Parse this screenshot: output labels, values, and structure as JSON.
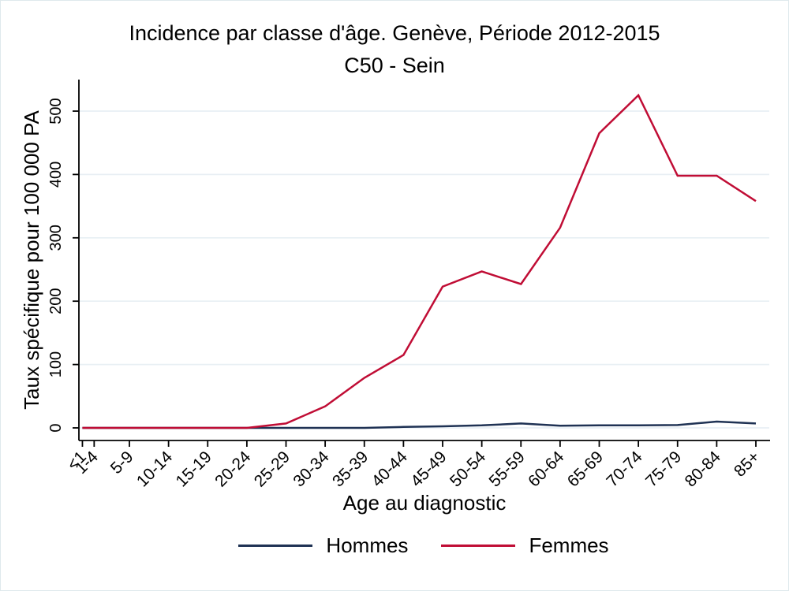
{
  "chart_data": {
    "type": "line",
    "title": "Incidence par classe d'âge. Genève, Période 2012-2015",
    "subtitle": "C50 - Sein",
    "xlabel": "Age au diagnostic",
    "ylabel": "Taux spécifique pour 100 000 PA",
    "categories": [
      "<1",
      "1-4",
      "5-9",
      "10-14",
      "15-19",
      "20-24",
      "25-29",
      "30-34",
      "35-39",
      "40-44",
      "45-49",
      "50-54",
      "55-59",
      "60-64",
      "65-69",
      "70-74",
      "75-79",
      "80-84",
      "85+"
    ],
    "x_age_positions": [
      1,
      2.5,
      7,
      12,
      17,
      22,
      27,
      32,
      37,
      42,
      47,
      52,
      57,
      62,
      67,
      72,
      77,
      82,
      87
    ],
    "yticks": [
      0,
      100,
      200,
      300,
      400,
      500
    ],
    "ylim": [
      0,
      550
    ],
    "grid": "horizontal",
    "grid_color": "#e8eff4",
    "axis_color": "#000000",
    "legend_position": "bottom",
    "series": [
      {
        "name": "Hommes",
        "color": "#1f3254",
        "values": [
          0,
          0,
          0,
          0,
          0,
          0,
          0,
          0,
          0,
          1.5,
          2.5,
          4,
          7,
          3.5,
          4,
          4,
          4.5,
          10,
          7
        ]
      },
      {
        "name": "Femmes",
        "color": "#c00d35",
        "values": [
          0,
          0,
          0,
          0,
          0,
          0,
          7,
          34,
          79,
          115,
          223,
          247,
          227,
          316,
          465,
          525,
          398,
          398,
          358
        ]
      }
    ]
  }
}
